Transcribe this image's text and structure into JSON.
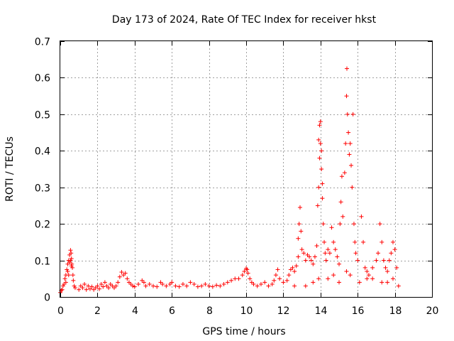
{
  "chart_data": {
    "type": "scatter",
    "title": "Day 173 of 2024, Rate Of TEC Index for receiver hkst",
    "xlabel": "GPS time / hours",
    "ylabel": "ROTI / TECUs",
    "xlim": [
      0,
      20
    ],
    "ylim": [
      0,
      0.7
    ],
    "xticks": [
      "0",
      "2",
      "4",
      "6",
      "8",
      "10",
      "12",
      "14",
      "16",
      "18",
      "20"
    ],
    "yticks": [
      "0",
      "0.1",
      "0.2",
      "0.3",
      "0.4",
      "0.5",
      "0.6",
      "0.7"
    ],
    "grid": true,
    "marker": "+",
    "marker_color": "#ff0000",
    "series": [
      {
        "name": "ROTI",
        "points": [
          [
            0.0,
            0.012
          ],
          [
            0.05,
            0.018
          ],
          [
            0.1,
            0.02
          ],
          [
            0.15,
            0.03
          ],
          [
            0.2,
            0.035
          ],
          [
            0.25,
            0.05
          ],
          [
            0.3,
            0.06
          ],
          [
            0.35,
            0.075
          ],
          [
            0.4,
            0.09
          ],
          [
            0.45,
            0.1
          ],
          [
            0.5,
            0.115
          ],
          [
            0.55,
            0.128
          ],
          [
            0.58,
            0.12
          ],
          [
            0.6,
            0.105
          ],
          [
            0.62,
            0.09
          ],
          [
            0.65,
            0.08
          ],
          [
            0.68,
            0.06
          ],
          [
            0.7,
            0.045
          ],
          [
            0.75,
            0.03
          ],
          [
            0.8,
            0.025
          ],
          [
            0.3,
            0.04
          ],
          [
            0.4,
            0.07
          ],
          [
            0.5,
            0.095
          ],
          [
            0.6,
            0.085
          ],
          [
            0.45,
            0.06
          ],
          [
            0.55,
            0.1
          ],
          [
            1.0,
            0.02
          ],
          [
            1.1,
            0.03
          ],
          [
            1.2,
            0.025
          ],
          [
            1.3,
            0.035
          ],
          [
            1.4,
            0.02
          ],
          [
            1.5,
            0.03
          ],
          [
            1.6,
            0.022
          ],
          [
            1.7,
            0.028
          ],
          [
            1.8,
            0.02
          ],
          [
            1.9,
            0.025
          ],
          [
            2.0,
            0.03
          ],
          [
            2.1,
            0.022
          ],
          [
            2.2,
            0.035
          ],
          [
            2.3,
            0.028
          ],
          [
            2.4,
            0.04
          ],
          [
            2.5,
            0.03
          ],
          [
            2.6,
            0.025
          ],
          [
            2.7,
            0.035
          ],
          [
            2.8,
            0.03
          ],
          [
            2.9,
            0.025
          ],
          [
            3.0,
            0.03
          ],
          [
            3.1,
            0.04
          ],
          [
            3.2,
            0.055
          ],
          [
            3.3,
            0.068
          ],
          [
            3.4,
            0.06
          ],
          [
            3.5,
            0.065
          ],
          [
            3.6,
            0.05
          ],
          [
            3.7,
            0.04
          ],
          [
            3.8,
            0.035
          ],
          [
            3.9,
            0.03
          ],
          [
            4.0,
            0.028
          ],
          [
            4.2,
            0.035
          ],
          [
            4.4,
            0.045
          ],
          [
            4.5,
            0.04
          ],
          [
            4.6,
            0.03
          ],
          [
            4.8,
            0.035
          ],
          [
            5.0,
            0.03
          ],
          [
            5.2,
            0.028
          ],
          [
            5.4,
            0.04
          ],
          [
            5.5,
            0.035
          ],
          [
            5.7,
            0.03
          ],
          [
            5.9,
            0.035
          ],
          [
            6.0,
            0.04
          ],
          [
            6.2,
            0.03
          ],
          [
            6.4,
            0.028
          ],
          [
            6.6,
            0.035
          ],
          [
            6.8,
            0.03
          ],
          [
            7.0,
            0.04
          ],
          [
            7.2,
            0.035
          ],
          [
            7.4,
            0.028
          ],
          [
            7.6,
            0.03
          ],
          [
            7.8,
            0.035
          ],
          [
            8.0,
            0.03
          ],
          [
            8.2,
            0.028
          ],
          [
            8.4,
            0.032
          ],
          [
            8.6,
            0.03
          ],
          [
            8.8,
            0.035
          ],
          [
            9.0,
            0.04
          ],
          [
            9.2,
            0.045
          ],
          [
            9.4,
            0.05
          ],
          [
            9.6,
            0.05
          ],
          [
            9.8,
            0.06
          ],
          [
            9.9,
            0.07
          ],
          [
            10.0,
            0.078
          ],
          [
            10.05,
            0.075
          ],
          [
            10.1,
            0.065
          ],
          [
            10.2,
            0.05
          ],
          [
            10.3,
            0.04
          ],
          [
            10.4,
            0.035
          ],
          [
            10.6,
            0.03
          ],
          [
            10.8,
            0.035
          ],
          [
            11.0,
            0.04
          ],
          [
            11.2,
            0.03
          ],
          [
            11.4,
            0.035
          ],
          [
            11.5,
            0.045
          ],
          [
            11.6,
            0.06
          ],
          [
            11.7,
            0.075
          ],
          [
            11.8,
            0.05
          ],
          [
            12.0,
            0.04
          ],
          [
            12.2,
            0.045
          ],
          [
            12.3,
            0.06
          ],
          [
            12.4,
            0.075
          ],
          [
            12.5,
            0.08
          ],
          [
            12.6,
            0.07
          ],
          [
            12.7,
            0.085
          ],
          [
            12.8,
            0.11
          ],
          [
            12.8,
            0.16
          ],
          [
            12.85,
            0.2
          ],
          [
            12.9,
            0.245
          ],
          [
            12.95,
            0.18
          ],
          [
            13.0,
            0.13
          ],
          [
            13.1,
            0.12
          ],
          [
            13.2,
            0.1
          ],
          [
            13.3,
            0.115
          ],
          [
            13.4,
            0.11
          ],
          [
            13.5,
            0.1
          ],
          [
            13.6,
            0.09
          ],
          [
            13.7,
            0.11
          ],
          [
            13.8,
            0.14
          ],
          [
            13.85,
            0.25
          ],
          [
            13.9,
            0.3
          ],
          [
            13.95,
            0.38
          ],
          [
            13.9,
            0.43
          ],
          [
            13.95,
            0.47
          ],
          [
            14.0,
            0.48
          ],
          [
            14.0,
            0.42
          ],
          [
            14.05,
            0.35
          ],
          [
            14.05,
            0.4
          ],
          [
            14.1,
            0.31
          ],
          [
            14.1,
            0.27
          ],
          [
            14.15,
            0.2
          ],
          [
            14.2,
            0.15
          ],
          [
            14.25,
            0.12
          ],
          [
            14.3,
            0.1
          ],
          [
            14.4,
            0.13
          ],
          [
            14.5,
            0.12
          ],
          [
            14.6,
            0.19
          ],
          [
            14.7,
            0.15
          ],
          [
            14.8,
            0.13
          ],
          [
            14.9,
            0.11
          ],
          [
            15.0,
            0.09
          ],
          [
            15.05,
            0.2
          ],
          [
            15.1,
            0.26
          ],
          [
            15.15,
            0.33
          ],
          [
            15.2,
            0.22
          ],
          [
            15.3,
            0.34
          ],
          [
            15.35,
            0.42
          ],
          [
            15.4,
            0.55
          ],
          [
            15.42,
            0.625
          ],
          [
            15.45,
            0.5
          ],
          [
            15.5,
            0.45
          ],
          [
            15.55,
            0.39
          ],
          [
            15.6,
            0.42
          ],
          [
            15.65,
            0.36
          ],
          [
            15.7,
            0.3
          ],
          [
            15.75,
            0.5
          ],
          [
            15.8,
            0.2
          ],
          [
            15.85,
            0.15
          ],
          [
            15.9,
            0.12
          ],
          [
            16.0,
            0.1
          ],
          [
            16.2,
            0.22
          ],
          [
            16.3,
            0.15
          ],
          [
            16.4,
            0.08
          ],
          [
            16.5,
            0.07
          ],
          [
            16.6,
            0.06
          ],
          [
            16.8,
            0.08
          ],
          [
            17.0,
            0.1
          ],
          [
            17.1,
            0.12
          ],
          [
            17.2,
            0.2
          ],
          [
            17.3,
            0.15
          ],
          [
            17.4,
            0.1
          ],
          [
            17.5,
            0.08
          ],
          [
            17.6,
            0.07
          ],
          [
            17.7,
            0.1
          ],
          [
            17.8,
            0.12
          ],
          [
            17.9,
            0.15
          ],
          [
            18.0,
            0.13
          ],
          [
            18.1,
            0.08
          ],
          [
            18.2,
            0.03
          ],
          [
            13.2,
            0.03
          ],
          [
            13.6,
            0.04
          ],
          [
            14.4,
            0.05
          ],
          [
            15.0,
            0.04
          ],
          [
            15.6,
            0.06
          ],
          [
            16.1,
            0.04
          ],
          [
            16.8,
            0.05
          ],
          [
            17.3,
            0.04
          ],
          [
            17.9,
            0.05
          ],
          [
            12.6,
            0.03
          ],
          [
            13.9,
            0.05
          ],
          [
            14.7,
            0.06
          ],
          [
            15.4,
            0.07
          ],
          [
            16.5,
            0.05
          ],
          [
            17.6,
            0.04
          ]
        ]
      }
    ]
  }
}
